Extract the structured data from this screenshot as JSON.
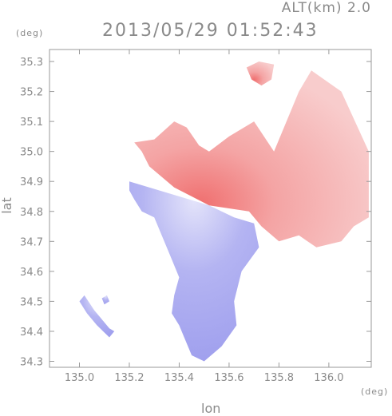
{
  "header": {
    "altitude": "ALT(km) 2.0",
    "timestamp": "2013/05/29 01:52:43"
  },
  "axes": {
    "y_unit": "(deg)",
    "x_unit": "(deg)",
    "x_label": "lon",
    "y_label": "lat"
  },
  "chart_data": {
    "type": "heatmap",
    "xlabel": "lon",
    "ylabel": "lat",
    "xlim": [
      134.88,
      136.17
    ],
    "ylim": [
      34.28,
      35.34
    ],
    "x_ticks": [
      135.0,
      135.2,
      135.4,
      135.6,
      135.8,
      136.0
    ],
    "x_tick_labels": [
      "135.0",
      "135.2",
      "135.4",
      "135.6",
      "135.8",
      "136.0"
    ],
    "y_ticks": [
      34.3,
      34.4,
      34.5,
      34.6,
      34.7,
      34.8,
      34.9,
      35.0,
      35.1,
      35.2,
      35.3
    ],
    "y_tick_labels": [
      "34.3",
      "34.4",
      "34.5",
      "34.6",
      "34.7",
      "34.8",
      "34.9",
      "35.0",
      "35.1",
      "35.2",
      "35.3"
    ],
    "radar_center": {
      "lon": 135.52,
      "lat": 34.82
    },
    "colors": {
      "receding": "#f2a0a0",
      "approaching": "#a8a8f0"
    },
    "regions": [
      {
        "name": "northeast-echo",
        "sign": "positive",
        "polygon": [
          [
            135.43,
            35.08
          ],
          [
            135.48,
            35.02
          ],
          [
            135.52,
            35.0
          ],
          [
            135.6,
            35.05
          ],
          [
            135.7,
            35.1
          ],
          [
            135.78,
            35.0
          ],
          [
            135.88,
            35.2
          ],
          [
            135.93,
            35.27
          ],
          [
            136.05,
            35.2
          ],
          [
            136.16,
            35.0
          ],
          [
            136.16,
            34.78
          ],
          [
            136.1,
            34.75
          ],
          [
            136.05,
            34.7
          ],
          [
            135.95,
            34.68
          ],
          [
            135.88,
            34.72
          ],
          [
            135.8,
            34.7
          ],
          [
            135.73,
            34.75
          ],
          [
            135.68,
            34.8
          ],
          [
            135.52,
            34.82
          ],
          [
            135.38,
            34.88
          ],
          [
            135.28,
            34.95
          ],
          [
            135.25,
            35.0
          ],
          [
            135.22,
            35.03
          ],
          [
            135.3,
            35.04
          ],
          [
            135.38,
            35.1
          ]
        ]
      },
      {
        "name": "north-cell",
        "sign": "positive",
        "polygon": [
          [
            135.67,
            35.28
          ],
          [
            135.72,
            35.3
          ],
          [
            135.78,
            35.29
          ],
          [
            135.77,
            35.24
          ],
          [
            135.73,
            35.22
          ],
          [
            135.69,
            35.24
          ]
        ]
      },
      {
        "name": "southwest-echo",
        "sign": "negative",
        "polygon": [
          [
            135.2,
            34.9
          ],
          [
            135.28,
            34.88
          ],
          [
            135.52,
            34.82
          ],
          [
            135.62,
            34.78
          ],
          [
            135.7,
            34.76
          ],
          [
            135.72,
            34.68
          ],
          [
            135.65,
            34.6
          ],
          [
            135.62,
            34.5
          ],
          [
            135.63,
            34.42
          ],
          [
            135.57,
            34.35
          ],
          [
            135.5,
            34.3
          ],
          [
            135.45,
            34.32
          ],
          [
            135.42,
            34.38
          ],
          [
            135.4,
            34.42
          ],
          [
            135.37,
            34.46
          ],
          [
            135.38,
            34.52
          ],
          [
            135.4,
            34.58
          ],
          [
            135.37,
            34.64
          ],
          [
            135.33,
            34.72
          ],
          [
            135.3,
            34.78
          ],
          [
            135.25,
            34.8
          ],
          [
            135.22,
            34.84
          ],
          [
            135.2,
            34.87
          ]
        ]
      },
      {
        "name": "island-strip",
        "sign": "negative",
        "polygon": [
          [
            135.0,
            34.5
          ],
          [
            135.02,
            34.52
          ],
          [
            135.06,
            34.47
          ],
          [
            135.12,
            34.41
          ],
          [
            135.14,
            34.4
          ],
          [
            135.12,
            34.38
          ],
          [
            135.07,
            34.42
          ],
          [
            135.03,
            34.46
          ]
        ]
      },
      {
        "name": "island-dot",
        "sign": "negative",
        "polygon": [
          [
            135.09,
            34.51
          ],
          [
            135.11,
            34.52
          ],
          [
            135.12,
            34.5
          ],
          [
            135.1,
            34.49
          ]
        ]
      }
    ]
  }
}
